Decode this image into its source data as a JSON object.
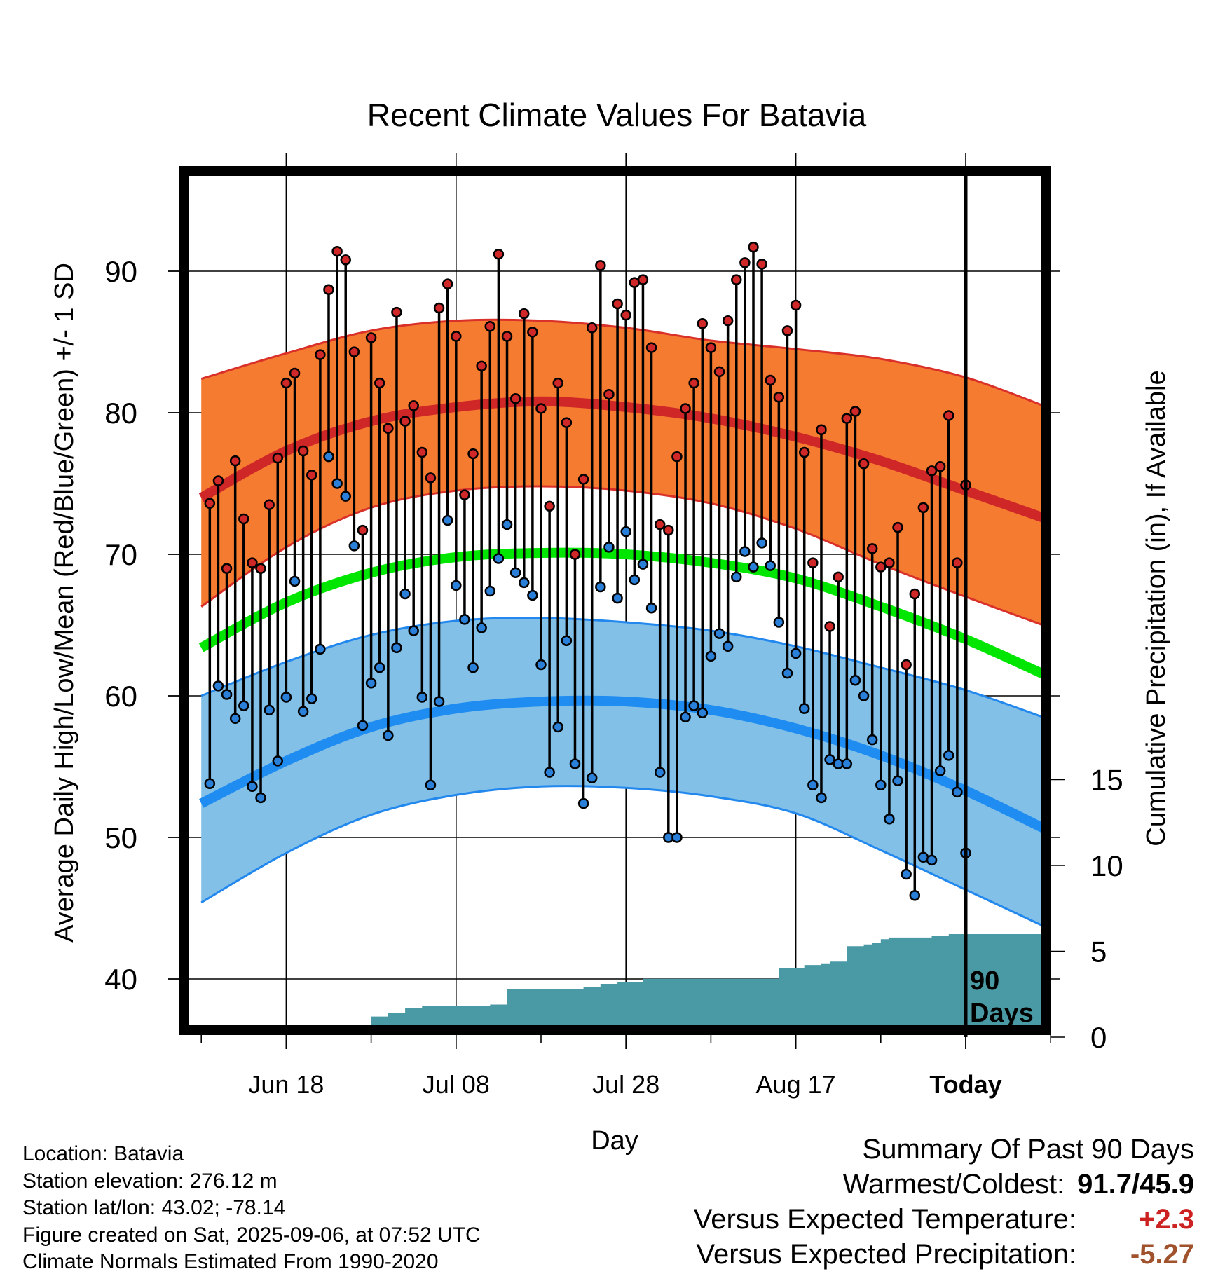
{
  "title": "Recent Climate Values For Batavia",
  "x_label": "Day",
  "y_label_left": "Average Daily High/Low/Mean (Red/Blue/Green) +/- 1 SD",
  "y_label_right": "Cumulative Precipitation (in), If Available",
  "window_label": [
    "90",
    "Days"
  ],
  "footer": {
    "location": "Location: Batavia",
    "elevation": "Station elevation: 276.12 m",
    "latlon": "Station lat/lon: 43.02; -78.14",
    "created": "Figure created on Sat, 2025-09-06, at 07:52 UTC",
    "normals": "Climate Normals Estimated From 1990-2020"
  },
  "summary": {
    "heading": "Summary Of Past 90 Days",
    "warm_cold_label": "Warmest/Coldest:",
    "warm_cold_value": "91.7/45.9",
    "temp_label": "Versus Expected Temperature:",
    "temp_value": "+2.3",
    "precip_label": "Versus Expected Precipitation:",
    "precip_value": "-5.27",
    "colors": {
      "temp": "#cc2222",
      "precip": "#a0522d"
    }
  },
  "chart_data": {
    "type": "line",
    "x_range_days": [
      -90,
      10
    ],
    "x_ticks": [
      {
        "day": -80,
        "label": "Jun 18"
      },
      {
        "day": -60,
        "label": "Jul 08"
      },
      {
        "day": -40,
        "label": "Jul 28"
      },
      {
        "day": -20,
        "label": "Aug 17"
      },
      {
        "day": 0,
        "label": "Today",
        "bold": true
      }
    ],
    "y_left_range": [
      35.7,
      97
    ],
    "y_left_ticks": [
      40,
      50,
      60,
      70,
      80,
      90
    ],
    "y_right_range": [
      0,
      34
    ],
    "y_right_ticks": [
      0,
      5,
      10,
      15
    ],
    "grid": true,
    "colors": {
      "high_band": "#f47b30",
      "high_mean": "#cf2627",
      "high_edge": "#d9302a",
      "low_band": "#82c0e8",
      "low_mean": "#1e8cf0",
      "low_edge": "#2288ee",
      "mean": "#00e600",
      "precip": "#4a9aa5",
      "high_marker": "#d02828",
      "low_marker": "#2a80d8"
    },
    "normals": {
      "days": [
        -90,
        -80,
        -70,
        -60,
        -50,
        -40,
        -30,
        -20,
        -10,
        0,
        10
      ],
      "high_mean": [
        74.0,
        77.3,
        79.4,
        80.4,
        80.8,
        80.4,
        79.6,
        78.3,
        76.6,
        74.5,
        72.4
      ],
      "high_upper": [
        82.4,
        84.2,
        85.8,
        86.5,
        86.5,
        86.0,
        85.1,
        84.5,
        83.8,
        82.5,
        80.3
      ],
      "high_lower": [
        66.3,
        70.5,
        73.3,
        74.5,
        74.8,
        74.5,
        73.6,
        71.8,
        69.3,
        67.0,
        64.8
      ],
      "low_mean": [
        52.4,
        55.4,
        57.8,
        59.1,
        59.6,
        59.6,
        59.0,
        57.7,
        55.8,
        53.3,
        50.4
      ],
      "low_upper": [
        60.0,
        62.4,
        64.3,
        65.3,
        65.5,
        65.2,
        64.6,
        63.5,
        62.0,
        60.4,
        58.3
      ],
      "low_lower": [
        45.4,
        48.9,
        51.6,
        53.0,
        53.6,
        53.5,
        52.9,
        51.7,
        49.1,
        46.3,
        43.5
      ],
      "mean": [
        63.4,
        66.6,
        68.7,
        69.8,
        70.1,
        70.0,
        69.4,
        68.3,
        66.3,
        64.0,
        61.3
      ]
    },
    "series": [
      {
        "name": "High",
        "values": [
          73.6,
          75.2,
          69.0,
          76.6,
          72.5,
          69.4,
          69.0,
          73.5,
          76.8,
          82.1,
          82.8,
          77.3,
          75.6,
          84.1,
          88.7,
          91.4,
          90.8,
          84.3,
          71.7,
          85.3,
          82.1,
          78.9,
          87.1,
          79.4,
          80.5,
          77.2,
          75.4,
          87.4,
          89.1,
          85.4,
          74.2,
          77.1,
          83.3,
          86.1,
          91.2,
          85.4,
          81.0,
          87.0,
          85.7,
          80.3,
          73.4,
          82.1,
          79.3,
          70.0,
          75.3,
          86.0,
          90.4,
          81.3,
          87.7,
          86.9,
          89.2,
          89.4,
          84.6,
          72.1,
          71.7,
          76.9,
          80.3,
          82.1,
          86.3,
          84.6,
          82.9,
          86.5,
          89.4,
          90.6,
          91.7,
          90.5,
          82.3,
          81.1,
          85.8,
          87.6,
          77.2,
          69.4,
          78.8,
          64.9,
          68.4,
          79.6,
          80.1,
          76.4,
          70.4,
          69.1,
          69.4,
          71.9,
          62.2,
          67.2,
          73.3,
          75.9,
          76.2,
          79.8,
          69.4,
          74.9
        ]
      },
      {
        "name": "Low",
        "values": [
          53.8,
          60.7,
          60.1,
          58.4,
          59.3,
          53.6,
          52.8,
          59.0,
          55.4,
          59.9,
          68.1,
          58.9,
          59.8,
          63.3,
          76.9,
          75.0,
          74.1,
          70.6,
          57.9,
          60.9,
          62.0,
          57.2,
          63.4,
          67.2,
          64.6,
          59.9,
          53.7,
          59.6,
          72.4,
          67.8,
          65.4,
          62.0,
          64.8,
          67.4,
          69.7,
          72.1,
          68.7,
          68.0,
          67.1,
          62.2,
          54.6,
          57.8,
          63.9,
          55.2,
          52.4,
          54.2,
          67.7,
          70.5,
          66.9,
          71.6,
          68.2,
          69.3,
          66.2,
          54.6,
          50.0,
          50.0,
          58.5,
          59.3,
          58.8,
          62.8,
          64.4,
          63.5,
          68.4,
          70.2,
          69.1,
          70.8,
          69.2,
          65.2,
          61.6,
          63.0,
          59.1,
          53.7,
          52.8,
          55.5,
          55.2,
          55.2,
          61.1,
          60.0,
          56.9,
          53.7,
          51.3,
          54.0,
          47.4,
          45.9,
          48.6,
          48.4,
          54.7,
          55.8,
          53.2,
          48.9
        ]
      },
      {
        "name": "Cumulative Precipitation",
        "days": [
          -89,
          -82,
          -78,
          -72,
          -70,
          -68,
          -66,
          -64,
          -62,
          -60,
          -56,
          -54,
          -45,
          -43,
          -41,
          -38,
          -32,
          -24,
          -22,
          -20,
          -19,
          -17,
          -16,
          -14,
          -12,
          -11,
          -10,
          -9,
          -8,
          -5,
          -4,
          -2,
          -1,
          0,
          10
        ],
        "values": [
          0.0,
          0.1,
          0.2,
          0.2,
          1.2,
          1.4,
          1.7,
          1.8,
          1.8,
          1.8,
          1.9,
          2.8,
          2.9,
          3.1,
          3.2,
          3.4,
          3.4,
          3.4,
          4.0,
          4.0,
          4.2,
          4.3,
          4.4,
          5.3,
          5.4,
          5.5,
          5.7,
          5.8,
          5.8,
          5.8,
          5.9,
          6.0,
          6.0,
          6.0,
          6.0
        ]
      }
    ]
  }
}
